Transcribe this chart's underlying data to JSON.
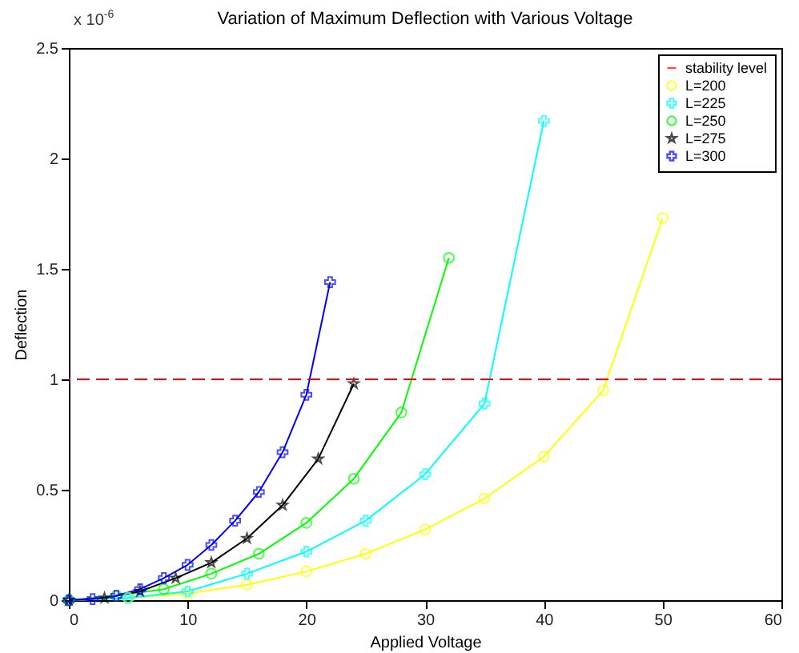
{
  "chart_data": {
    "type": "line",
    "title": "Variation of Maximum Deflection with Various Voltage",
    "xlabel": "Applied Voltage",
    "ylabel": "Deflection",
    "annotations": [
      "x 10$^{-6}$"
    ],
    "xlim": [
      0,
      60
    ],
    "xticks": [
      0,
      10,
      20,
      30,
      40,
      50,
      60
    ],
    "ylim": [
      0,
      2.5
    ],
    "yticks": [
      0,
      0.5,
      1,
      1.5,
      2,
      2.5
    ],
    "legend": "top right",
    "line_style": "solid",
    "ref_lines": [
      {
        "axis": "y",
        "value": 1,
        "label": "stability level",
        "color": "#ff0000",
        "line_style": "dashed"
      }
    ],
    "series": [
      {
        "name": "L=200",
        "color": "#ffff00",
        "marker": "circle",
        "x": [
          0,
          5,
          10,
          15,
          20,
          25,
          30,
          35,
          40,
          45,
          50
        ],
        "values": [
          0,
          0.01,
          0.03,
          0.07,
          0.13,
          0.21,
          0.32,
          0.46,
          0.65,
          0.95,
          1.73
        ]
      },
      {
        "name": "L=225",
        "color": "#00ffff",
        "marker": "cross",
        "x": [
          0,
          5,
          10,
          15,
          20,
          25,
          30,
          35,
          40
        ],
        "values": [
          0,
          0.01,
          0.04,
          0.12,
          0.22,
          0.36,
          0.57,
          0.89,
          2.17
        ]
      },
      {
        "name": "L=250",
        "color": "#00ff00",
        "marker": "circle",
        "x": [
          0,
          4,
          8,
          12,
          16,
          20,
          24,
          28,
          32
        ],
        "values": [
          0,
          0.02,
          0.05,
          0.12,
          0.21,
          0.35,
          0.55,
          0.85,
          1.55
        ]
      },
      {
        "name": "L=275",
        "color": "#000000",
        "marker": "star",
        "x": [
          0,
          3,
          6,
          9,
          12,
          15,
          18,
          21,
          24
        ],
        "values": [
          0,
          0.01,
          0.04,
          0.1,
          0.17,
          0.28,
          0.43,
          0.64,
          0.98
        ]
      },
      {
        "name": "L=300",
        "color": "#0000ff",
        "marker": "cross",
        "x": [
          0,
          2,
          4,
          6,
          8,
          10,
          12,
          14,
          16,
          18,
          20,
          22
        ],
        "values": [
          0,
          0.005,
          0.02,
          0.05,
          0.1,
          0.16,
          0.25,
          0.36,
          0.49,
          0.67,
          0.93,
          1.44
        ]
      }
    ]
  }
}
